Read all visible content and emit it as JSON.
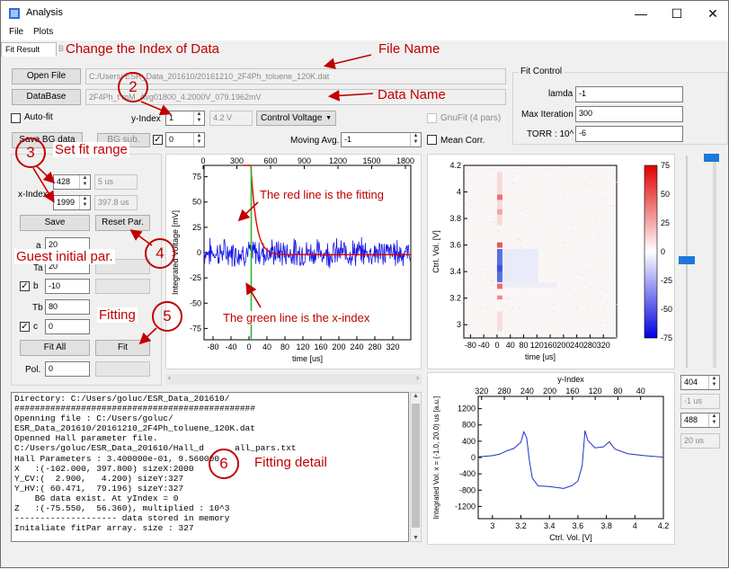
{
  "window": {
    "title": "Analysis",
    "minimize": "—",
    "maximize": "☐",
    "close": "✕"
  },
  "menu": {
    "file": "File",
    "plots": "Plots"
  },
  "tabs": {
    "fit_result": "Fit Result",
    "hidden": "B"
  },
  "file_row": {
    "open_label": "Open File",
    "path": "C:/Users/        ESR_Data_201610/20161210_2F4Ph_toluene_120K.dat"
  },
  "db_row": {
    "db_label": "DataBase",
    "name": "2F4Ph_t           mM_Avg01800_4.2000V_079.1962mV"
  },
  "autofit": {
    "label": "Auto-fit"
  },
  "yindex": {
    "label": "y-Index",
    "value": "1",
    "voltage": "4.2 V",
    "mode": "Control Voltage"
  },
  "gnufit": {
    "label": "GnuFit (4 pars)"
  },
  "bg_row": {
    "save_bg": "Save BG data",
    "bg_sub": "BG sub.",
    "bg_value": "0"
  },
  "moving": {
    "label": "Moving Avg.",
    "value": "-1"
  },
  "meancorr": {
    "label": "Mean Corr."
  },
  "xindex": {
    "label": "x-Index",
    "start": "428",
    "start_time": "5 us",
    "end": "1999",
    "end_time": "397.8 us"
  },
  "actions": {
    "save": "Save",
    "reset": "Reset Par.",
    "fit_all": "Fit All",
    "fit": "Fit"
  },
  "params": {
    "a_label": "a",
    "a_value": "20",
    "ta_label": "Ta",
    "ta_value": "20",
    "b_label": "b",
    "b_value": "-10",
    "tb_label": "Tb",
    "tb_value": "80",
    "c_label": "c",
    "c_value": "0",
    "pol_label": "Pol.",
    "pol_value": "0"
  },
  "fit_control": {
    "title": "Fit Control",
    "lamda_label": "lamda",
    "lamda_value": "-1",
    "iter_label": "Max Iteration",
    "iter_value": "300",
    "torr_label": "TORR : 10^",
    "torr_value": "-6"
  },
  "right_side": {
    "idx1": "404",
    "t1": "-1 us",
    "idx2": "488",
    "t2": "20 us"
  },
  "plot1": {
    "ylabel": "Integrated Voltage [mV]",
    "xlabel": "time [us]",
    "top_ticks": [
      "0",
      "300",
      "600",
      "900",
      "1200",
      "1500",
      "1800"
    ],
    "bottom_ticks": [
      "-80",
      "-40",
      "0",
      "40",
      "80",
      "120",
      "160",
      "200",
      "240",
      "280",
      "320"
    ],
    "y_ticks": [
      "75",
      "50",
      "25",
      "0",
      "-25",
      "-50",
      "-75"
    ],
    "colors": {
      "noise": "#1414e6",
      "fit": "#e00000",
      "xline": "#2eb82e"
    }
  },
  "plot2": {
    "ylabel": "Ctrl. Vol. [V]",
    "xlabel": "time [us]",
    "y_ticks": [
      "4.2",
      "4",
      "3.8",
      "3.6",
      "3.4",
      "3.2",
      "3"
    ],
    "x_ticks": [
      "-80",
      "-40",
      "0",
      "40",
      "80",
      "120",
      "160",
      "200",
      "240",
      "280",
      "320"
    ],
    "cbar_ticks": [
      "75",
      "50",
      "25",
      "0",
      "-25",
      "-50",
      "-75"
    ]
  },
  "plot3": {
    "title": "y-Index",
    "ylabel": "Integrated Vol. x = (-1.0, 20.0) us [a.u.]",
    "xlabel": "Ctrl. Vol. [V]",
    "top_ticks": [
      "320",
      "280",
      "240",
      "200",
      "160",
      "120",
      "80",
      "40"
    ],
    "y_ticks": [
      "1200",
      "800",
      "400",
      "0",
      "-400",
      "-800",
      "-1200"
    ],
    "x_ticks": [
      "3",
      "3.2",
      "3.4",
      "3.6",
      "3.8",
      "4",
      "4.2"
    ]
  },
  "console_lines": [
    "Directory: C:/Users/goluc/ESR_Data_201610/",
    "###############################################",
    "Openning file : C:/Users/goluc/",
    "ESR_Data_201610/20161210_2F4Ph_toluene_120K.dat",
    "Openned Hall parameter file.",
    "C:/Users/goluc/ESR_Data_201610/Hall_d      all_pars.txt",
    "Hall Parameters : 3.400000e-01, 9.560000",
    "X   :(-102.000, 397.800) sizeX:2000",
    "Y_CV:(  2.900,   4.200) sizeY:327",
    "Y_HV:( 60.471,  79.196) sizeY:327",
    "    BG data exist. At yIndex = 0",
    "Z   :(-75.550,  56.360), multiplied : 10^3",
    "-------------------- data stored in memory",
    "Initaliate fitPar array. size : 327"
  ],
  "annotations": {
    "change_index": "Change the Index of Data",
    "file_name": "File Name",
    "data_name": "Data Name",
    "set_fit_range": "Set fit range",
    "guest_initial": "Guest initial par.",
    "fitting": "Fitting",
    "fitting_detail": "Fitting detail",
    "red_line": "The red line is the fitting",
    "green_line": "The green line is the x-index",
    "n2": "2",
    "n3": "3",
    "n4": "4",
    "n5": "5",
    "n6": "6"
  }
}
